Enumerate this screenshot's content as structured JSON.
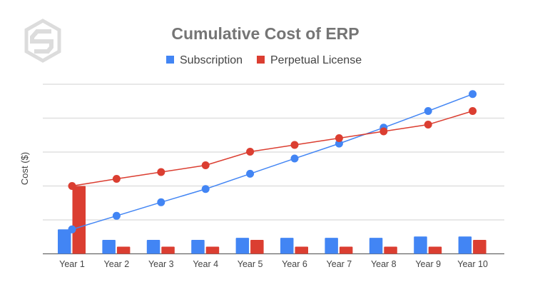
{
  "chart_data": {
    "type": "bar",
    "title": "Cumulative Cost of ERP",
    "xlabel": "",
    "ylabel": "Cost ($)",
    "ylim": [
      0,
      5
    ],
    "grid": true,
    "y_tick_labels_shown": false,
    "legend_position": "top",
    "categories": [
      "Year 1",
      "Year 2",
      "Year 3",
      "Year 4",
      "Year 5",
      "Year 6",
      "Year 7",
      "Year 8",
      "Year 9",
      "Year 10"
    ],
    "series": [
      {
        "name": "Subscription",
        "kind": "bar",
        "color": "#4285f4",
        "values": [
          0.72,
          0.41,
          0.41,
          0.41,
          0.47,
          0.47,
          0.47,
          0.47,
          0.51,
          0.51
        ]
      },
      {
        "name": "Perpetual License",
        "kind": "bar",
        "color": "#db3e31",
        "values": [
          2.0,
          0.21,
          0.21,
          0.21,
          0.41,
          0.21,
          0.21,
          0.21,
          0.21,
          0.41
        ]
      },
      {
        "name": "Subscription",
        "kind": "line",
        "color": "#4285f4",
        "values": [
          0.72,
          1.12,
          1.52,
          1.91,
          2.36,
          2.81,
          3.25,
          3.72,
          4.21,
          4.71
        ]
      },
      {
        "name": "Perpetual License",
        "kind": "line",
        "color": "#db3e31",
        "values": [
          2.0,
          2.21,
          2.41,
          2.61,
          3.01,
          3.21,
          3.41,
          3.61,
          3.81,
          4.21
        ]
      }
    ],
    "legend": [
      {
        "label": "Subscription",
        "color": "#4285f4"
      },
      {
        "label": "Perpetual License",
        "color": "#db3e31"
      }
    ],
    "logo": "hexagon-s-logo"
  }
}
